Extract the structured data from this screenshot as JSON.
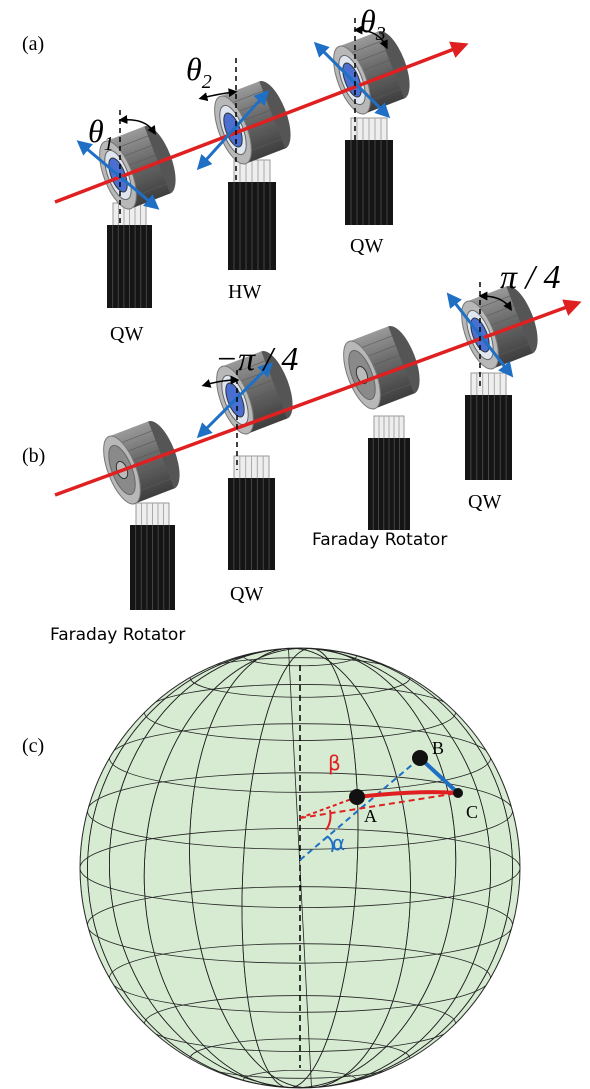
{
  "panel_a": {
    "label": "(a)",
    "angles": [
      {
        "symbol": "θ",
        "index": "1"
      },
      {
        "symbol": "θ",
        "index": "2"
      },
      {
        "symbol": "θ",
        "index": "3"
      }
    ],
    "elements": [
      "QW",
      "HW",
      "QW"
    ]
  },
  "panel_b": {
    "label": "(b)",
    "angles": [
      "−π / 4",
      "π / 4"
    ],
    "elements": [
      "QW",
      "QW"
    ],
    "rotators": [
      "Faraday Rotator",
      "Faraday Rotator"
    ]
  },
  "panel_c": {
    "label": "(c)",
    "points": [
      "A",
      "B",
      "C"
    ],
    "angles": [
      "α",
      "β"
    ]
  }
}
